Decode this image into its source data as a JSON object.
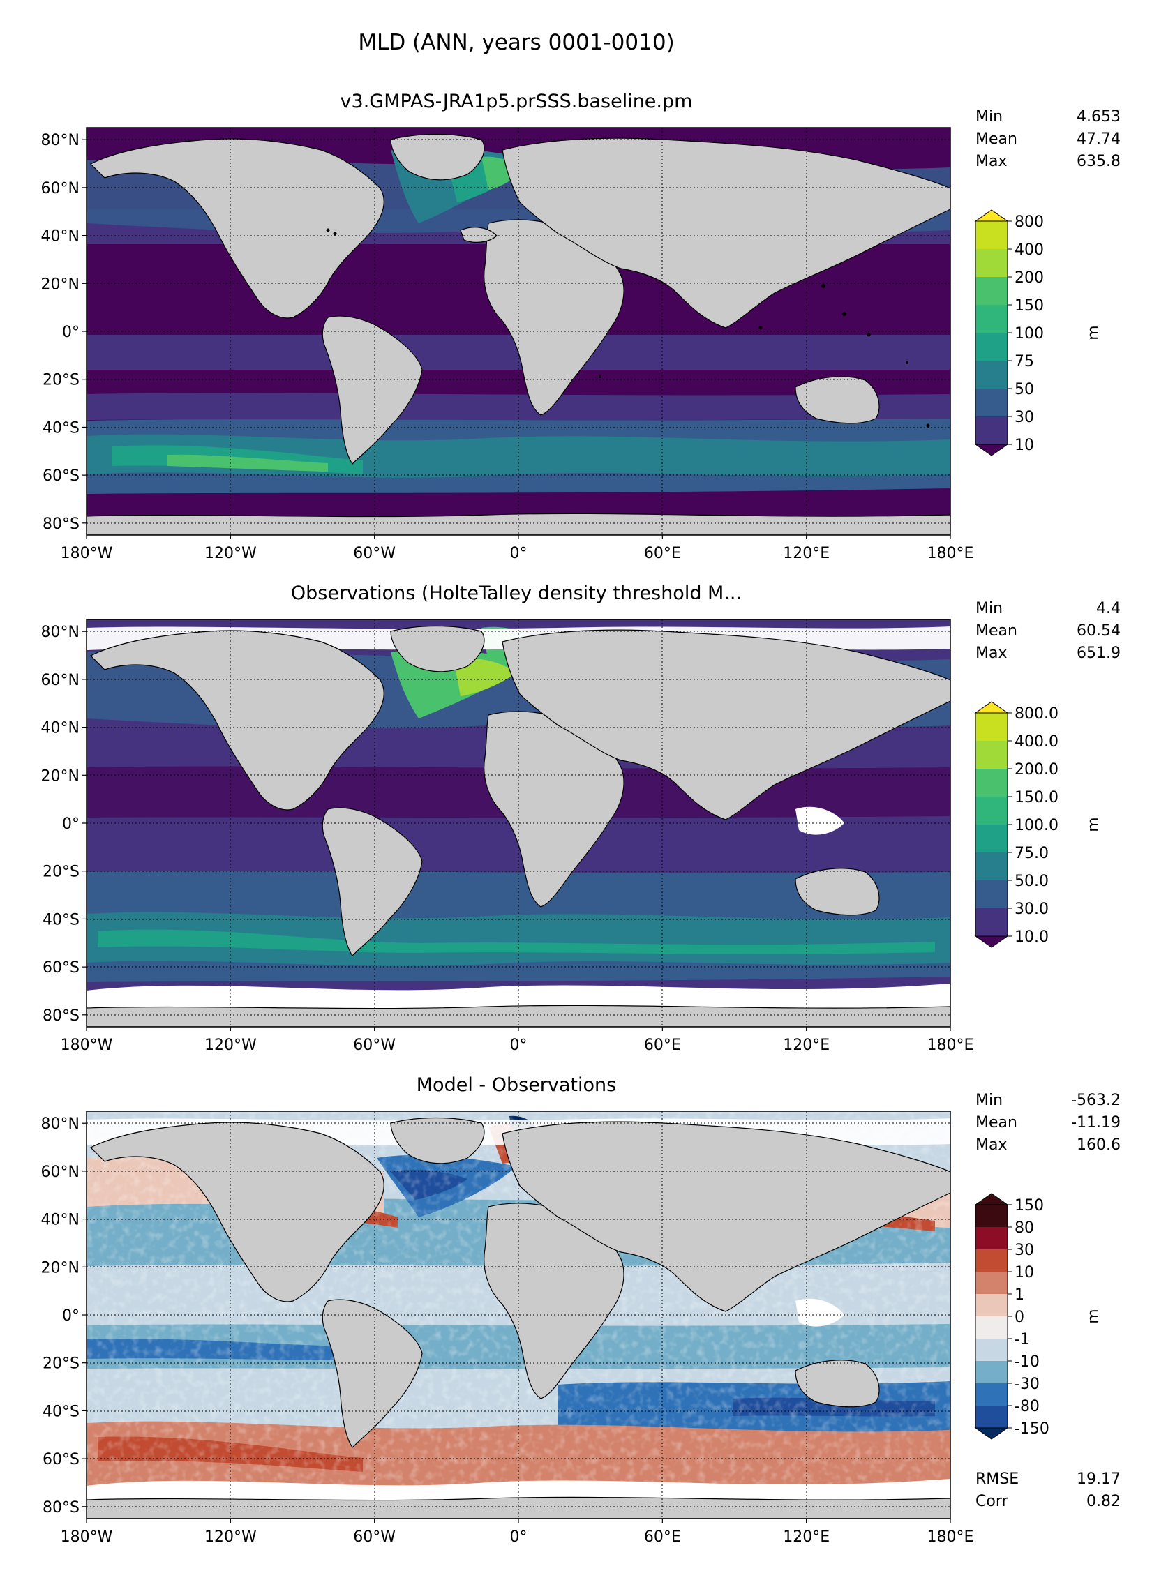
{
  "figure_title": "MLD (ANN, years 0001-0010)",
  "colors": {
    "land": "#cbcbcb",
    "viridis": [
      "#450457",
      "#46337f",
      "#365c8d",
      "#277f8e",
      "#1fa187",
      "#30b67b",
      "#4ac16d",
      "#a0da39",
      "#c8e020",
      "#fde725"
    ],
    "diff": [
      "#062b60",
      "#1f4e9c",
      "#2f72b7",
      "#74aec8",
      "#c7d8e4",
      "#f0eceb",
      "#ebc7b9",
      "#d3836c",
      "#c14c32",
      "#8c0d25",
      "#3b0a10"
    ]
  },
  "panels": [
    {
      "title": "v3.GMPAS-JRA1p5.prSSS.baseline.pm",
      "stats": [
        [
          "Min",
          "4.653"
        ],
        [
          "Mean",
          "47.74"
        ],
        [
          "Max",
          "635.8"
        ]
      ],
      "colorbar": {
        "unit": "m",
        "ticks": [
          "10",
          "30",
          "50",
          "75",
          "100",
          "150",
          "200",
          "400",
          "800"
        ]
      }
    },
    {
      "title": "Observations (HolteTalley density threshold M...",
      "stats": [
        [
          "Min",
          "4.4"
        ],
        [
          "Mean",
          "60.54"
        ],
        [
          "Max",
          "651.9"
        ]
      ],
      "colorbar": {
        "unit": "m",
        "ticks": [
          "10.0",
          "30.0",
          "50.0",
          "75.0",
          "100.0",
          "150.0",
          "200.0",
          "400.0",
          "800.0"
        ]
      }
    },
    {
      "title": "Model - Observations",
      "stats": [
        [
          "Min",
          "-563.2"
        ],
        [
          "Mean",
          "-11.19"
        ],
        [
          "Max",
          "160.6"
        ]
      ],
      "extra_stats": [
        [
          "RMSE",
          "19.17"
        ],
        [
          "Corr",
          "0.82"
        ]
      ],
      "colorbar": {
        "unit": "m",
        "ticks": [
          "-150",
          "-80",
          "-30",
          "-10",
          "-1",
          "0",
          "1",
          "10",
          "30",
          "80",
          "150"
        ]
      }
    }
  ],
  "axes": {
    "lat_ticks": [
      "80°N",
      "60°N",
      "40°N",
      "20°N",
      "0°",
      "20°S",
      "40°S",
      "60°S",
      "80°S"
    ],
    "lon_ticks": [
      "180°W",
      "120°W",
      "60°W",
      "0°",
      "60°E",
      "120°E",
      "180°E"
    ]
  },
  "chart_data": [
    {
      "type": "heatmap",
      "title": "v3.GMPAS-JRA1p5.prSSS.baseline.pm",
      "variable": "MLD",
      "unit": "m",
      "xlim": [
        -180,
        180
      ],
      "ylim": [
        -85,
        85
      ],
      "levels": [
        10,
        30,
        50,
        75,
        100,
        150,
        200,
        400,
        800
      ],
      "stats": {
        "min": 4.653,
        "mean": 47.74,
        "max": 635.8
      }
    },
    {
      "type": "heatmap",
      "title": "Observations (HolteTalley density threshold M...",
      "variable": "MLD",
      "unit": "m",
      "xlim": [
        -180,
        180
      ],
      "ylim": [
        -85,
        85
      ],
      "levels": [
        10.0,
        30.0,
        50.0,
        75.0,
        100.0,
        150.0,
        200.0,
        400.0,
        800.0
      ],
      "stats": {
        "min": 4.4,
        "mean": 60.54,
        "max": 651.9
      }
    },
    {
      "type": "heatmap",
      "title": "Model - Observations",
      "variable": "MLD difference",
      "unit": "m",
      "xlim": [
        -180,
        180
      ],
      "ylim": [
        -85,
        85
      ],
      "levels": [
        -150,
        -80,
        -30,
        -10,
        -1,
        0,
        1,
        10,
        30,
        80,
        150
      ],
      "stats": {
        "min": -563.2,
        "mean": -11.19,
        "max": 160.6,
        "rmse": 19.17,
        "corr": 0.82
      }
    }
  ]
}
